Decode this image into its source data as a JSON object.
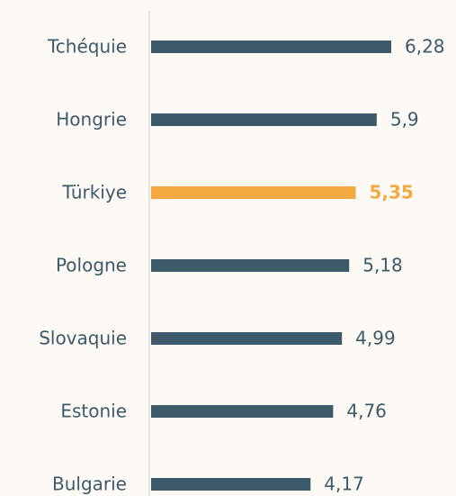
{
  "chart_data": {
    "type": "bar",
    "orientation": "horizontal",
    "categories": [
      "Tchéquie",
      "Hongrie",
      "Türkiye",
      "Pologne",
      "Slovaquie",
      "Estonie",
      "Bulgarie"
    ],
    "values": [
      6.28,
      5.9,
      5.35,
      5.18,
      4.99,
      4.76,
      4.17
    ],
    "value_labels": [
      "6,28",
      "5,9",
      "5,35",
      "5,18",
      "4,99",
      "4,76",
      "4,17"
    ],
    "color": "#3d5a6a",
    "colors": [
      "#3d5a6a",
      "#3d5a6a",
      "#f4a942",
      "#3d5a6a",
      "#3d5a6a",
      "#3d5a6a",
      "#3d5a6a"
    ]
  }
}
